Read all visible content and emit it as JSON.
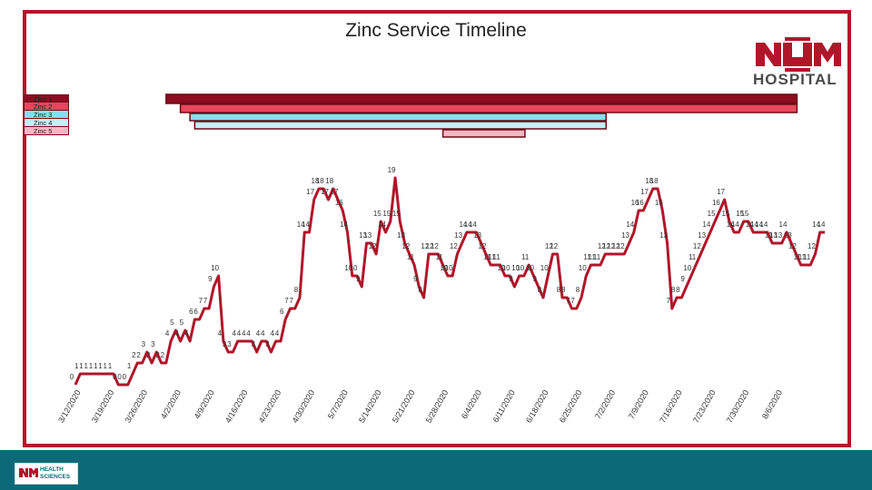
{
  "title": "Zinc Service Timeline",
  "logo": {
    "text": "HOSPITAL",
    "footer_text_1": "HEALTH",
    "footer_text_2": "SCIENCES"
  },
  "colors": {
    "accent": "#b0162a",
    "line": "#b0162a",
    "footer": "#0c6a78",
    "zinc1": "#8b0d1f",
    "zinc2": "#e8475d",
    "zinc3": "#7fe3ee",
    "zinc4": "#bff3f7",
    "zinc5": "#f6b7c2"
  },
  "legend": [
    "Zinc 1",
    "Zinc 2",
    "Zinc 3",
    "Zinc 4",
    "Zinc 5"
  ],
  "chart_data": [
    {
      "type": "gantt",
      "series": [
        {
          "name": "Zinc 1",
          "start": "3/31/2020",
          "end": "8/6/2020"
        },
        {
          "name": "Zinc 2",
          "start": "4/3/2020",
          "end": "8/6/2020"
        },
        {
          "name": "Zinc 3",
          "start": "4/5/2020",
          "end": "6/27/2020"
        },
        {
          "name": "Zinc 4",
          "start": "4/6/2020",
          "end": "6/27/2020"
        },
        {
          "name": "Zinc 5",
          "start": "5/28/2020",
          "end": "6/10/2020"
        }
      ]
    },
    {
      "type": "line",
      "x_start": "3/12/2020",
      "x_step_days": 1,
      "tick_labels": [
        "3/12/2020",
        "3/19/2020",
        "3/26/2020",
        "4/2/2020",
        "4/9/2020",
        "4/16/2020",
        "4/23/2020",
        "4/30/2020",
        "5/7/2020",
        "5/14/2020",
        "5/21/2020",
        "5/28/2020",
        "6/4/2020",
        "6/11/2020",
        "6/18/2020",
        "6/25/2020",
        "7/2/2020",
        "7/9/2020",
        "7/16/2020",
        "7/23/2020",
        "7/30/2020",
        "8/6/2020"
      ],
      "values": [
        0,
        1,
        1,
        1,
        1,
        1,
        1,
        1,
        1,
        0,
        0,
        0,
        1,
        2,
        2,
        3,
        2,
        3,
        2,
        2,
        4,
        5,
        4,
        5,
        4,
        6,
        6,
        7,
        7,
        9,
        10,
        4,
        3,
        3,
        4,
        4,
        4,
        4,
        3,
        4,
        4,
        3,
        4,
        4,
        6,
        7,
        7,
        8,
        14,
        14,
        17,
        18,
        18,
        17,
        18,
        17,
        16,
        14,
        10,
        10,
        9,
        13,
        13,
        12,
        15,
        14,
        15,
        19,
        15,
        13,
        12,
        11,
        9,
        8,
        12,
        12,
        12,
        11,
        10,
        10,
        12,
        13,
        14,
        14,
        14,
        13,
        12,
        11,
        11,
        11,
        10,
        10,
        9,
        10,
        10,
        11,
        10,
        9,
        8,
        10,
        12,
        12,
        8,
        8,
        7,
        7,
        8,
        10,
        11,
        11,
        11,
        12,
        12,
        12,
        12,
        12,
        13,
        14,
        16,
        16,
        17,
        18,
        18,
        16,
        13,
        7,
        8,
        8,
        9,
        10,
        11,
        12,
        13,
        14,
        15,
        16,
        17,
        15,
        14,
        14,
        15,
        15,
        14,
        14,
        14,
        14,
        13,
        13,
        13,
        14,
        13,
        12,
        11,
        11,
        11,
        12,
        14,
        14
      ],
      "data_labels": [
        "0",
        "1",
        "1",
        "1",
        "1",
        "1",
        "1",
        "1",
        "1",
        "0",
        "0",
        "0",
        "1",
        "2",
        "2",
        "3",
        "2",
        "3",
        "2",
        "2",
        "4",
        "5",
        "4",
        "5",
        "4",
        "6",
        "6",
        "7",
        "7",
        "9",
        "10",
        "4",
        "3",
        "3",
        "4",
        "4",
        "4",
        "4",
        "3",
        "4",
        "4",
        "3",
        "4",
        "4",
        "6",
        "7",
        "7",
        "8",
        "14",
        "14",
        "17",
        "18",
        "18",
        "17",
        "18",
        "17",
        "16",
        "14",
        "10",
        "10",
        "9",
        "13",
        "13",
        "12",
        "15",
        "14",
        "15",
        "19",
        "15",
        "13",
        "12",
        "11",
        "9",
        "8",
        "12",
        "12",
        "12",
        "11",
        "10",
        "10",
        "12",
        "13",
        "14",
        "14",
        "14",
        "13",
        "12",
        "11",
        "11",
        "11",
        "10",
        "10",
        "9",
        "10",
        "10",
        "11",
        "10",
        "9",
        "8",
        "10",
        "12",
        "12",
        "8",
        "8",
        "7",
        "7",
        "8",
        "10",
        "11",
        "11",
        "11",
        "12",
        "12",
        "12",
        "12",
        "12",
        "13",
        "14",
        "16",
        "16",
        "17",
        "18",
        "18",
        "16",
        "13",
        "7",
        "8",
        "8",
        "9",
        "10",
        "11",
        "12",
        "13",
        "14",
        "15",
        "16",
        "17",
        "15",
        "14",
        "14",
        "15",
        "15",
        "14",
        "14",
        "14",
        "14",
        "13",
        "13",
        "13",
        "14",
        "13",
        "12",
        "11",
        "11",
        "11",
        "12",
        "14",
        "14"
      ],
      "ylim": [
        0,
        19
      ]
    }
  ]
}
